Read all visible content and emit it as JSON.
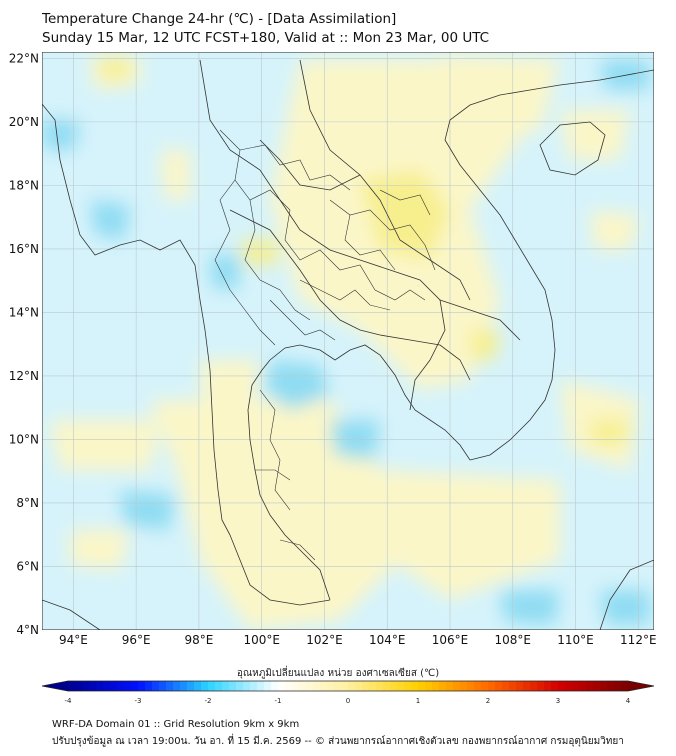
{
  "title": {
    "line1": "Temperature Change 24-hr (℃) - [Data Assimilation]",
    "line2": "Sunday 15 Mar, 12 UTC FCST+180, Valid at :: Mon 23 Mar, 00 UTC"
  },
  "map": {
    "lat_labels": [
      "22°N",
      "20°N",
      "18°N",
      "16°N",
      "14°N",
      "12°N",
      "10°N",
      "8°N",
      "6°N",
      "4°N"
    ],
    "lat_values": [
      22,
      20,
      18,
      16,
      14,
      12,
      10,
      8,
      6,
      4
    ],
    "lon_labels": [
      "94°E",
      "96°E",
      "98°E",
      "100°E",
      "102°E",
      "104°E",
      "106°E",
      "108°E",
      "110°E",
      "112°E"
    ],
    "lon_values": [
      94,
      96,
      98,
      100,
      102,
      104,
      106,
      108,
      110,
      112
    ],
    "lon_range": [
      93,
      112.5
    ],
    "lat_range": [
      4,
      22.2
    ],
    "colors": {
      "background_cool": "#d6f3fb",
      "warm_field": "#fbf6c8",
      "warm_strong": "#f7ef8e",
      "cool_strong": "#8fdcf3",
      "border": "#333333"
    }
  },
  "colorbar": {
    "label": "อุณหภูมิเปลี่ยนแปลง หน่วย องศาเซลเซียส (℃)",
    "ticks": [
      "-4",
      "-3",
      "-2",
      "-1",
      "0",
      "1",
      "2",
      "3",
      "4"
    ],
    "tick_values": [
      -4,
      -3,
      -2,
      -1,
      0,
      1,
      2,
      3,
      4
    ],
    "range": [
      -4,
      4
    ],
    "stops": [
      "#00008f",
      "#0010ff",
      "#2ad4ff",
      "#ffffff",
      "#fff0a0",
      "#ffd000",
      "#ff6a00",
      "#d40000",
      "#7a0000"
    ]
  },
  "footer": {
    "line1": "WRF-DA Domain 01 :: Grid Resolution 9km x 9km",
    "line2": "ปรับปรุงข้อมูล ณ เวลา 19:00น. วัน อา. ที่ 15 มี.ค. 2569 -- © ส่วนพยากรณ์อากาศเชิงตัวเลข กองพยากรณ์อากาศ กรมอุตุนิยมวิทยา"
  }
}
